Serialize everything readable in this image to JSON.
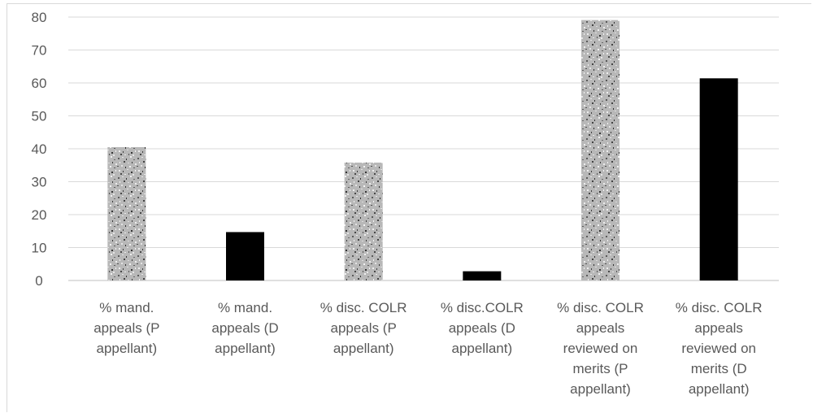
{
  "chart_data": {
    "type": "bar",
    "title": "",
    "xlabel": "",
    "ylabel": "",
    "ylim": [
      0,
      80
    ],
    "yticks": [
      "0",
      "10",
      "20",
      "30",
      "40",
      "50",
      "60",
      "70",
      "80"
    ],
    "grid": true,
    "legend": "none",
    "categories": [
      [
        "% mand.",
        "appeals (P",
        "appellant)"
      ],
      [
        "% mand.",
        "appeals (D",
        "appellant)"
      ],
      [
        "% disc. COLR",
        "appeals (P",
        "appellant)"
      ],
      [
        "% disc.COLR",
        "appeals (D",
        "appellant)"
      ],
      [
        "% disc. COLR",
        "appeals",
        "reviewed on",
        "merits (P",
        "appellant)"
      ],
      [
        "% disc. COLR",
        "appeals",
        "reviewed on",
        "merits (D",
        "appellant)"
      ]
    ],
    "values": [
      40.5,
      14.7,
      35.8,
      2.8,
      79.1,
      61.4
    ],
    "fills": [
      "pattern",
      "#000000",
      "pattern",
      "#000000",
      "pattern",
      "#000000"
    ]
  }
}
